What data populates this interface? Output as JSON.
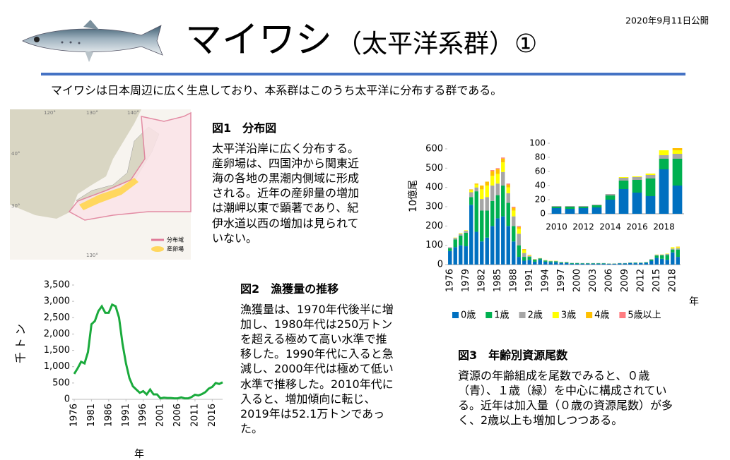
{
  "header": {
    "date": "2020年9月11日公開",
    "title": "マイワシ",
    "subtitle": "（太平洋系群）①",
    "intro": "マイワシは日本周辺に広く生息しており、本系群はこのうち太平洋に分布する群である。"
  },
  "figure1": {
    "title": "図1　分布図",
    "text": "太平洋沿岸に広く分布する。産卵場は、四国沖から関東近海の各地の黒潮内側域に形成される。近年の産卵量の増加は潮岬以東で顕著であり、紀伊水道以西の増加は見られていない。",
    "map_labels": [
      "120°",
      "130°",
      "140°",
      "40°",
      "30°",
      "130°"
    ],
    "legend": [
      "分布域",
      "産卵場"
    ]
  },
  "figure2": {
    "title": "図2　漁獲量の推移",
    "text": "漁獲量は、1970年代後半に増加し、1980年代は250万トンを超える極めて高い水準で推移した。1990年代に入ると急減し、2000年代は極めて低い水準で推移した。2010年代に入ると、増加傾向に転じ、2019年は52.1万トンであった。"
  },
  "figure3": {
    "title": "図3　年齢別資源尾数",
    "text": "資源の年齢組成を尾数でみると、０歳（青）、１歳（緑）を中心に構成されている。近年は加入量（０歳の資源尾数）が多く、2歳以上も増加しつつある。"
  },
  "chart_data": [
    {
      "type": "line",
      "y_label": "千トン",
      "x_label": "年",
      "color": "#1aaa3c",
      "x": [
        1976,
        1977,
        1978,
        1979,
        1980,
        1981,
        1982,
        1983,
        1984,
        1985,
        1986,
        1987,
        1988,
        1989,
        1990,
        1991,
        1992,
        1993,
        1994,
        1995,
        1996,
        1997,
        1998,
        1999,
        2000,
        2001,
        2002,
        2003,
        2004,
        2005,
        2006,
        2007,
        2008,
        2009,
        2010,
        2011,
        2012,
        2013,
        2014,
        2015,
        2016,
        2017,
        2018,
        2019
      ],
      "values": [
        780,
        950,
        1150,
        1100,
        1450,
        2300,
        2400,
        2700,
        2850,
        2650,
        2650,
        2900,
        2850,
        2500,
        1700,
        1100,
        650,
        400,
        300,
        200,
        250,
        150,
        300,
        150,
        150,
        30,
        50,
        40,
        40,
        30,
        30,
        60,
        30,
        30,
        70,
        140,
        120,
        160,
        220,
        330,
        380,
        500,
        470,
        521
      ],
      "xlim": [
        1976,
        2019
      ],
      "xticks": [
        1976,
        1981,
        1986,
        1991,
        1996,
        2001,
        2006,
        2011,
        2016
      ],
      "ylim": [
        0,
        3500
      ],
      "yticks": [
        0,
        500,
        {
          "value": 1000,
          "label": "1,000"
        },
        {
          "value": 1500,
          "label": "1,500"
        },
        {
          "value": 2000,
          "label": "2,000"
        },
        {
          "value": 2500,
          "label": "2,500"
        },
        {
          "value": 3000,
          "label": "3,000"
        },
        {
          "value": 3500,
          "label": "3,500"
        }
      ]
    },
    {
      "type": "stacked_bar",
      "y_label": "10億尾",
      "x_label": "年",
      "legend": "bottom",
      "categories": [
        "1976",
        null,
        null,
        "1979",
        null,
        null,
        "1982",
        null,
        null,
        "1985",
        null,
        null,
        "1988",
        null,
        null,
        "1991",
        null,
        null,
        "1994",
        null,
        null,
        "1997",
        null,
        null,
        "2000",
        null,
        null,
        "2003",
        null,
        null,
        "2006",
        null,
        null,
        "2009",
        null,
        null,
        "2012",
        null,
        null,
        "2015",
        null,
        null,
        "2018",
        null
      ],
      "ylim": [
        0,
        600
      ],
      "yticks": [
        0,
        100,
        200,
        300,
        400,
        500,
        600
      ],
      "series": [
        {
          "name": "0歳",
          "color": "#0070c0",
          "values": [
            70,
            90,
            100,
            95,
            310,
            170,
            120,
            140,
            200,
            240,
            250,
            200,
            120,
            40,
            20,
            25,
            15,
            25,
            15,
            12,
            12,
            8,
            8,
            5,
            5,
            5,
            5,
            5,
            5,
            5,
            4,
            4,
            6,
            6,
            8,
            7,
            8,
            9,
            20,
            35,
            30,
            25,
            63,
            40
          ]
        },
        {
          "name": "1歳",
          "color": "#00b050",
          "values": [
            15,
            40,
            50,
            70,
            40,
            210,
            160,
            140,
            130,
            120,
            160,
            120,
            80,
            60,
            20,
            15,
            10,
            6,
            6,
            5,
            5,
            4,
            4,
            3,
            3,
            2,
            2,
            2,
            2,
            2,
            1,
            1,
            1,
            1,
            2,
            3,
            2,
            3,
            6,
            12,
            18,
            25,
            15,
            38
          ]
        },
        {
          "name": "2歳",
          "color": "#a6a6a6",
          "values": [
            5,
            8,
            10,
            10,
            25,
            20,
            60,
            70,
            80,
            60,
            70,
            50,
            50,
            60,
            20,
            5,
            3,
            2,
            2,
            2,
            2,
            2,
            2,
            1,
            1,
            1,
            1,
            1,
            1,
            1,
            1,
            1,
            1,
            1,
            1,
            1,
            1,
            1,
            2,
            4,
            4,
            5,
            5,
            7
          ]
        },
        {
          "name": "3歳",
          "color": "#ffff00",
          "values": [
            0,
            2,
            3,
            3,
            10,
            15,
            50,
            60,
            50,
            50,
            50,
            30,
            30,
            25,
            15,
            3,
            1,
            1,
            1,
            1,
            1,
            0,
            0,
            0,
            0,
            0,
            0,
            0,
            0,
            0,
            0,
            0,
            0,
            0,
            0,
            0,
            0,
            0,
            0,
            1,
            1,
            2,
            7,
            5
          ]
        },
        {
          "name": "4歳",
          "color": "#ffc000",
          "values": [
            0,
            0,
            0,
            0,
            5,
            5,
            20,
            20,
            25,
            25,
            20,
            15,
            15,
            10,
            5,
            2,
            0,
            0,
            0,
            0,
            0,
            0,
            0,
            0,
            0,
            0,
            0,
            0,
            0,
            0,
            0,
            0,
            0,
            0,
            0,
            0,
            0,
            0,
            0,
            0,
            0,
            0,
            0,
            3
          ]
        },
        {
          "name": "5歳以上",
          "color": "#ff7c80",
          "values": [
            0,
            0,
            0,
            0,
            0,
            0,
            0,
            0,
            5,
            5,
            5,
            5,
            5,
            5,
            0,
            0,
            0,
            0,
            0,
            0,
            0,
            0,
            0,
            0,
            0,
            0,
            0,
            0,
            0,
            0,
            0,
            0,
            0,
            0,
            0,
            0,
            0,
            0,
            0,
            0,
            0,
            0,
            0,
            0
          ]
        }
      ]
    },
    {
      "type": "stacked_bar",
      "categories": [
        "2010",
        null,
        "2012",
        null,
        "2014",
        null,
        "2016",
        null,
        "2018",
        null
      ],
      "ylim": [
        0,
        100
      ],
      "yticks": [
        0,
        20,
        40,
        60,
        80,
        100
      ],
      "series": [
        {
          "color": "#0070c0",
          "values": [
            8,
            7,
            8,
            9,
            20,
            35,
            30,
            25,
            63,
            40
          ]
        },
        {
          "color": "#00b050",
          "values": [
            2,
            3,
            2,
            3,
            6,
            12,
            18,
            25,
            15,
            38
          ]
        },
        {
          "color": "#a6a6a6",
          "values": [
            1,
            1,
            1,
            1,
            2,
            4,
            4,
            5,
            5,
            7
          ]
        },
        {
          "color": "#ffff00",
          "values": [
            0,
            0,
            0,
            0,
            0,
            1,
            1,
            2,
            7,
            5
          ]
        },
        {
          "color": "#ffc000",
          "values": [
            0,
            0,
            0,
            0,
            0,
            0,
            0,
            0,
            0,
            3
          ]
        },
        {
          "color": "#ff7c80",
          "values": [
            0,
            0,
            0,
            0,
            0,
            0,
            0,
            0,
            0,
            0
          ]
        }
      ]
    }
  ]
}
